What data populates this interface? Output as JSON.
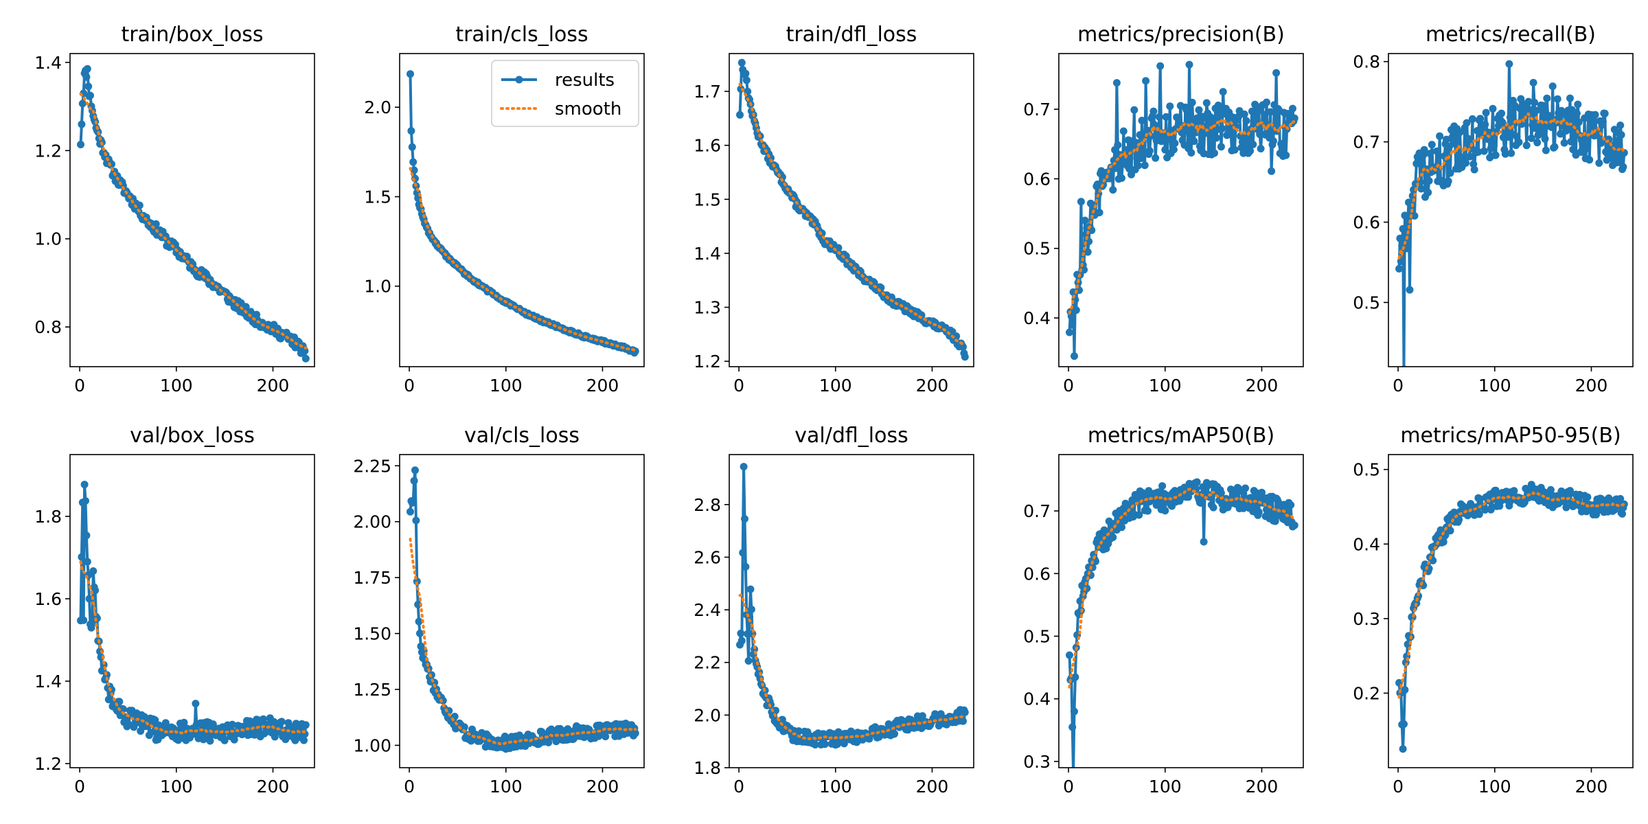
{
  "figure": {
    "legend": {
      "placement": "top-right of train/cls_loss",
      "items": [
        {
          "label": "results",
          "style": "line-with-markers",
          "color": "#1f77b4"
        },
        {
          "label": "smooth",
          "style": "dotted",
          "color": "#ff7f0e"
        }
      ]
    },
    "colors": {
      "results": "#1f77b4",
      "smooth": "#ff7f0e"
    }
  },
  "chart_data": [
    {
      "type": "line",
      "title": "train/box_loss",
      "x_range": [
        1,
        234
      ],
      "xlim": [
        -10,
        243
      ],
      "xticks": [
        0,
        100,
        200
      ],
      "xtick_labels": [
        "0",
        "100",
        "200"
      ],
      "ylim": [
        0.71,
        1.42
      ],
      "yticks": [
        0.8,
        1.0,
        1.2,
        1.4
      ],
      "ytick_labels": [
        "0.8",
        "1.0",
        "1.2",
        "1.4"
      ],
      "anchors_x": [
        1,
        3,
        5,
        8,
        10,
        15,
        20,
        30,
        40,
        50,
        60,
        70,
        80,
        90,
        100,
        120,
        140,
        160,
        180,
        200,
        220,
        230,
        234
      ],
      "anchors_y": [
        1.22,
        1.31,
        1.37,
        1.38,
        1.33,
        1.27,
        1.23,
        1.17,
        1.13,
        1.1,
        1.07,
        1.04,
        1.02,
        0.995,
        0.975,
        0.93,
        0.895,
        0.855,
        0.82,
        0.795,
        0.77,
        0.75,
        0.73
      ],
      "noise": 0.012,
      "spikes": [],
      "seed": 11,
      "smooth_window": 10
    },
    {
      "type": "line",
      "title": "train/cls_loss",
      "x_range": [
        1,
        234
      ],
      "xlim": [
        -10,
        243
      ],
      "xticks": [
        0,
        100,
        200
      ],
      "xtick_labels": [
        "0",
        "100",
        "200"
      ],
      "ylim": [
        0.55,
        2.3
      ],
      "yticks": [
        1.0,
        1.5,
        2.0
      ],
      "ytick_labels": [
        "1.0",
        "1.5",
        "2.0"
      ],
      "anchors_x": [
        1,
        2,
        4,
        6,
        8,
        10,
        15,
        20,
        30,
        40,
        50,
        60,
        80,
        100,
        120,
        140,
        160,
        180,
        200,
        220,
        234
      ],
      "anchors_y": [
        2.19,
        1.87,
        1.7,
        1.6,
        1.52,
        1.46,
        1.37,
        1.3,
        1.22,
        1.16,
        1.11,
        1.06,
        0.98,
        0.91,
        0.85,
        0.8,
        0.76,
        0.72,
        0.69,
        0.66,
        0.63
      ],
      "noise": 0.008,
      "spikes": [],
      "seed": 12,
      "smooth_window": 10
    },
    {
      "type": "line",
      "title": "train/dfl_loss",
      "x_range": [
        1,
        234
      ],
      "xlim": [
        -10,
        243
      ],
      "xticks": [
        0,
        100,
        200
      ],
      "xtick_labels": [
        "0",
        "100",
        "200"
      ],
      "ylim": [
        1.19,
        1.77
      ],
      "yticks": [
        1.2,
        1.3,
        1.4,
        1.5,
        1.6,
        1.7
      ],
      "ytick_labels": [
        "1.2",
        "1.3",
        "1.4",
        "1.5",
        "1.6",
        "1.7"
      ],
      "anchors_x": [
        1,
        3,
        5,
        8,
        10,
        15,
        20,
        30,
        40,
        50,
        60,
        70,
        80,
        90,
        100,
        120,
        140,
        160,
        180,
        200,
        220,
        230,
        234
      ],
      "anchors_y": [
        1.66,
        1.75,
        1.74,
        1.72,
        1.69,
        1.65,
        1.62,
        1.58,
        1.55,
        1.52,
        1.49,
        1.47,
        1.45,
        1.42,
        1.41,
        1.37,
        1.34,
        1.31,
        1.29,
        1.27,
        1.25,
        1.23,
        1.21
      ],
      "noise": 0.007,
      "spikes": [],
      "seed": 13,
      "smooth_window": 10
    },
    {
      "type": "line",
      "title": "metrics/precision(B)",
      "x_range": [
        1,
        234
      ],
      "xlim": [
        -10,
        243
      ],
      "xticks": [
        0,
        100,
        200
      ],
      "xtick_labels": [
        "0",
        "100",
        "200"
      ],
      "ylim": [
        0.33,
        0.78
      ],
      "yticks": [
        0.4,
        0.5,
        0.6,
        0.7
      ],
      "ytick_labels": [
        "0.4",
        "0.5",
        "0.6",
        "0.7"
      ],
      "anchors_x": [
        1,
        5,
        10,
        15,
        20,
        25,
        30,
        40,
        50,
        60,
        80,
        100,
        120,
        140,
        160,
        180,
        200,
        220,
        234
      ],
      "anchors_y": [
        0.4,
        0.42,
        0.46,
        0.5,
        0.53,
        0.55,
        0.57,
        0.6,
        0.62,
        0.64,
        0.66,
        0.67,
        0.67,
        0.67,
        0.67,
        0.67,
        0.68,
        0.67,
        0.66
      ],
      "noise": 0.04,
      "spikes": [
        [
          6,
          -0.05
        ],
        [
          8,
          -0.03
        ],
        [
          13,
          0.1
        ],
        [
          50,
          0.12
        ],
        [
          68,
          0.09
        ],
        [
          80,
          0.08
        ],
        [
          95,
          0.09
        ],
        [
          125,
          0.09
        ],
        [
          160,
          0.09
        ],
        [
          215,
          0.09
        ],
        [
          210,
          -0.08
        ]
      ],
      "seed": 14,
      "smooth_window": 8
    },
    {
      "type": "line",
      "title": "metrics/recall(B)",
      "x_range": [
        1,
        234
      ],
      "xlim": [
        -10,
        243
      ],
      "xticks": [
        0,
        100,
        200
      ],
      "xtick_labels": [
        "0",
        "100",
        "200"
      ],
      "ylim": [
        0.42,
        0.81
      ],
      "yticks": [
        0.5,
        0.6,
        0.7,
        0.8
      ],
      "ytick_labels": [
        "0.5",
        "0.6",
        "0.7",
        "0.8"
      ],
      "anchors_x": [
        1,
        5,
        8,
        12,
        20,
        30,
        40,
        50,
        60,
        80,
        100,
        120,
        140,
        160,
        180,
        200,
        220,
        234
      ],
      "anchors_y": [
        0.56,
        0.6,
        0.58,
        0.63,
        0.65,
        0.66,
        0.67,
        0.68,
        0.69,
        0.7,
        0.71,
        0.72,
        0.72,
        0.72,
        0.72,
        0.71,
        0.7,
        0.7
      ],
      "noise": 0.035,
      "spikes": [
        [
          6,
          -0.2
        ],
        [
          12,
          -0.08
        ],
        [
          115,
          0.08
        ],
        [
          160,
          0.08
        ],
        [
          140,
          0.07
        ]
      ],
      "seed": 15,
      "smooth_window": 8
    },
    {
      "type": "line",
      "title": "val/box_loss",
      "x_range": [
        1,
        234
      ],
      "xlim": [
        -10,
        243
      ],
      "xticks": [
        0,
        100,
        200
      ],
      "xtick_labels": [
        "0",
        "100",
        "200"
      ],
      "ylim": [
        1.19,
        1.95
      ],
      "yticks": [
        1.2,
        1.4,
        1.6,
        1.8
      ],
      "ytick_labels": [
        "1.2",
        "1.4",
        "1.6",
        "1.8"
      ],
      "anchors_x": [
        1,
        3,
        5,
        8,
        10,
        12,
        15,
        18,
        20,
        25,
        30,
        40,
        50,
        60,
        80,
        100,
        120,
        140,
        160,
        180,
        200,
        220,
        234
      ],
      "anchors_y": [
        1.56,
        1.82,
        1.9,
        1.7,
        1.6,
        1.52,
        1.62,
        1.55,
        1.48,
        1.42,
        1.38,
        1.33,
        1.31,
        1.3,
        1.28,
        1.28,
        1.28,
        1.28,
        1.28,
        1.29,
        1.29,
        1.28,
        1.28
      ],
      "noise": 0.025,
      "spikes": [
        [
          4,
          -0.3
        ],
        [
          14,
          0.1
        ],
        [
          120,
          0.05
        ]
      ],
      "seed": 16,
      "smooth_window": 10
    },
    {
      "type": "line",
      "title": "val/cls_loss",
      "x_range": [
        1,
        234
      ],
      "xlim": [
        -10,
        243
      ],
      "xticks": [
        0,
        100,
        200
      ],
      "xtick_labels": [
        "0",
        "100",
        "200"
      ],
      "ylim": [
        0.9,
        2.3
      ],
      "yticks": [
        1.0,
        1.25,
        1.5,
        1.75,
        2.0,
        2.25
      ],
      "ytick_labels": [
        "1.00",
        "1.25",
        "1.50",
        "1.75",
        "2.00",
        "2.25"
      ],
      "anchors_x": [
        1,
        4,
        6,
        8,
        10,
        12,
        15,
        20,
        30,
        40,
        50,
        60,
        80,
        100,
        120,
        140,
        160,
        180,
        200,
        220,
        234
      ],
      "anchors_y": [
        2.06,
        2.1,
        2.24,
        1.75,
        1.55,
        1.45,
        1.4,
        1.33,
        1.22,
        1.15,
        1.09,
        1.05,
        1.02,
        1.01,
        1.02,
        1.04,
        1.05,
        1.06,
        1.06,
        1.07,
        1.07
      ],
      "noise": 0.03,
      "spikes": [],
      "seed": 17,
      "smooth_window": 10
    },
    {
      "type": "line",
      "title": "val/dfl_loss",
      "x_range": [
        1,
        234
      ],
      "xlim": [
        -10,
        243
      ],
      "xticks": [
        0,
        100,
        200
      ],
      "xtick_labels": [
        "0",
        "100",
        "200"
      ],
      "ylim": [
        1.8,
        2.99
      ],
      "yticks": [
        1.8,
        2.0,
        2.2,
        2.4,
        2.6,
        2.8
      ],
      "ytick_labels": [
        "1.8",
        "2.0",
        "2.2",
        "2.4",
        "2.6",
        "2.8"
      ],
      "anchors_x": [
        1,
        3,
        5,
        8,
        10,
        12,
        15,
        20,
        30,
        40,
        50,
        60,
        80,
        100,
        120,
        140,
        160,
        180,
        200,
        220,
        234
      ],
      "anchors_y": [
        2.28,
        2.3,
        2.95,
        2.4,
        2.2,
        2.5,
        2.25,
        2.15,
        2.05,
        1.98,
        1.94,
        1.92,
        1.91,
        1.91,
        1.92,
        1.93,
        1.95,
        1.97,
        1.98,
        1.99,
        2.0
      ],
      "noise": 0.025,
      "spikes": [],
      "seed": 18,
      "smooth_window": 10
    },
    {
      "type": "line",
      "title": "metrics/mAP50(B)",
      "x_range": [
        1,
        234
      ],
      "xlim": [
        -10,
        243
      ],
      "xticks": [
        0,
        100,
        200
      ],
      "xtick_labels": [
        "0",
        "100",
        "200"
      ],
      "ylim": [
        0.29,
        0.79
      ],
      "yticks": [
        0.3,
        0.4,
        0.5,
        0.6,
        0.7
      ],
      "ytick_labels": [
        "0.3",
        "0.4",
        "0.5",
        "0.6",
        "0.7"
      ],
      "anchors_x": [
        1,
        3,
        5,
        8,
        10,
        15,
        20,
        30,
        40,
        50,
        60,
        80,
        100,
        120,
        140,
        160,
        180,
        200,
        220,
        234
      ],
      "anchors_y": [
        0.48,
        0.42,
        0.3,
        0.5,
        0.53,
        0.57,
        0.6,
        0.64,
        0.66,
        0.68,
        0.7,
        0.72,
        0.72,
        0.73,
        0.73,
        0.72,
        0.72,
        0.71,
        0.7,
        0.69
      ],
      "noise": 0.02,
      "spikes": [
        [
          140,
          -0.06
        ]
      ],
      "seed": 19,
      "smooth_window": 8
    },
    {
      "type": "line",
      "title": "metrics/mAP50-95(B)",
      "x_range": [
        1,
        234
      ],
      "xlim": [
        -10,
        243
      ],
      "xticks": [
        0,
        100,
        200
      ],
      "xtick_labels": [
        "0",
        "100",
        "200"
      ],
      "ylim": [
        0.1,
        0.52
      ],
      "yticks": [
        0.2,
        0.3,
        0.4,
        0.5
      ],
      "ytick_labels": [
        "0.2",
        "0.3",
        "0.4",
        "0.5"
      ],
      "anchors_x": [
        1,
        3,
        5,
        8,
        10,
        15,
        20,
        30,
        40,
        50,
        60,
        80,
        100,
        120,
        140,
        160,
        180,
        200,
        220,
        234
      ],
      "anchors_y": [
        0.22,
        0.2,
        0.12,
        0.23,
        0.26,
        0.3,
        0.33,
        0.37,
        0.4,
        0.42,
        0.44,
        0.45,
        0.46,
        0.46,
        0.47,
        0.46,
        0.46,
        0.45,
        0.45,
        0.45
      ],
      "noise": 0.012,
      "spikes": [],
      "seed": 20,
      "smooth_window": 8
    }
  ]
}
